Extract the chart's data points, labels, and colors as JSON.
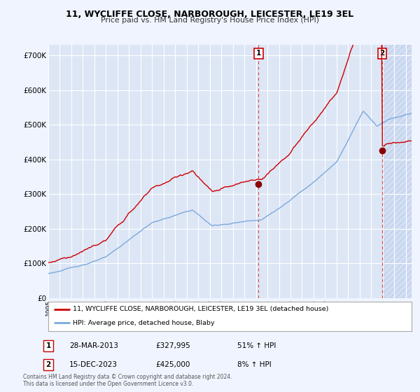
{
  "title": "11, WYCLIFFE CLOSE, NARBOROUGH, LEICESTER, LE19 3EL",
  "subtitle": "Price paid vs. HM Land Registry's House Price Index (HPI)",
  "ylabel_ticks": [
    "£0",
    "£100K",
    "£200K",
    "£300K",
    "£400K",
    "£500K",
    "£600K",
    "£700K"
  ],
  "ytick_values": [
    0,
    100000,
    200000,
    300000,
    400000,
    500000,
    600000,
    700000
  ],
  "ylim": [
    0,
    730000
  ],
  "xlim_start": 1995.0,
  "xlim_end": 2026.5,
  "sale1_year": 2013.23,
  "sale1_price": 327995,
  "sale2_year": 2023.96,
  "sale2_price": 425000,
  "line1_label": "11, WYCLIFFE CLOSE, NARBOROUGH, LEICESTER, LE19 3EL (detached house)",
  "line2_label": "HPI: Average price, detached house, Blaby",
  "annotation1": [
    "1",
    "28-MAR-2013",
    "£327,995",
    "51% ↑ HPI"
  ],
  "annotation2": [
    "2",
    "15-DEC-2023",
    "£425,000",
    "8% ↑ HPI"
  ],
  "footer1": "Contains HM Land Registry data © Crown copyright and database right 2024.",
  "footer2": "This data is licensed under the Open Government Licence v3.0.",
  "bg_color": "#f0f4ff",
  "plot_bg_color": "#dde6f5",
  "grid_color": "#ffffff",
  "red_color": "#cc0000",
  "blue_color": "#7aaadd",
  "marker_box_color": "#cc0000",
  "hatch_color": "#c8d8f0"
}
